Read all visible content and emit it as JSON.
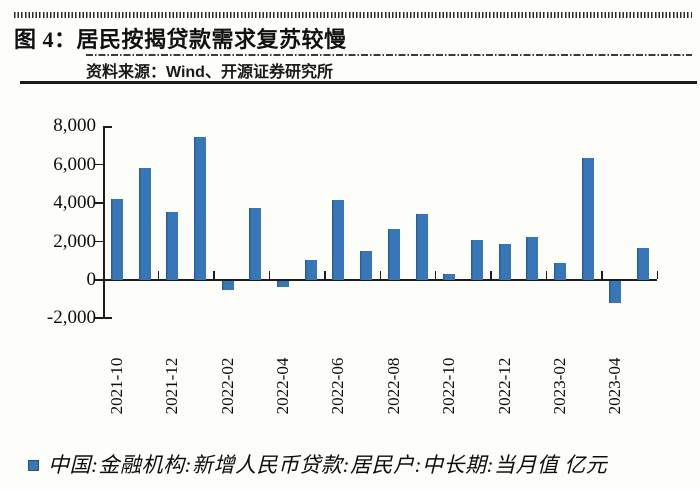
{
  "header": {
    "figure_label": "图 4：居民按揭贷款需求复苏较慢",
    "source": "资料来源：Wind、开源证券研究所"
  },
  "chart_data": {
    "type": "bar",
    "title": "",
    "categories": [
      "2021-10",
      "2021-11",
      "2021-12",
      "2022-01",
      "2022-02",
      "2022-03",
      "2022-04",
      "2022-05",
      "2022-06",
      "2022-07",
      "2022-08",
      "2022-09",
      "2022-10",
      "2022-11",
      "2022-12",
      "2023-01",
      "2023-02",
      "2023-03",
      "2023-04",
      "2023-05"
    ],
    "values": [
      4221,
      5821,
      3558,
      7424,
      -459,
      3735,
      -313,
      1047,
      4167,
      1486,
      2658,
      3456,
      332,
      2103,
      1865,
      2231,
      863,
      6348,
      -1156,
      1684
    ],
    "x_tick_labels": [
      "2021-10",
      "2021-12",
      "2022-02",
      "2022-04",
      "2022-06",
      "2022-08",
      "2022-10",
      "2022-12",
      "2023-02",
      "2023-04"
    ],
    "y_ticks": [
      8000,
      6000,
      4000,
      2000,
      0,
      -2000
    ],
    "y_tick_labels": [
      "8,000",
      "6,000",
      "4,000",
      "2,000",
      "0",
      "-2,000"
    ],
    "ylim": [
      -2000,
      8000
    ],
    "grid": false,
    "bar_color": "#3877B7",
    "axis_color": "#1c1c1c",
    "legend": "中国:金融机构:新增人民币贷款:居民户:中长期:当月值 亿元",
    "legend_position": "bottom",
    "unit": "亿元"
  }
}
